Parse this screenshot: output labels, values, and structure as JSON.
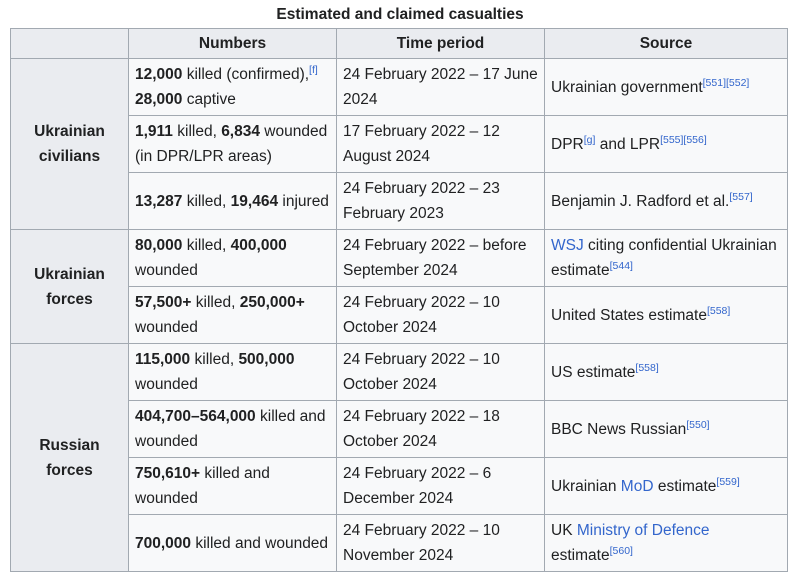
{
  "caption": "Estimated and claimed casualties",
  "headers": {
    "numbers": "Numbers",
    "time_period": "Time period",
    "source": "Source"
  },
  "groups": {
    "civilians": "Ukrainian civilians",
    "ua_forces": "Ukrainian forces",
    "ru_forces": "Russian forces"
  },
  "rows": [
    {
      "num_b1": "12,000",
      "num_t1": " killed (confirmed),",
      "num_ref": "[f]",
      "num_b2": "28,000",
      "num_t2": " captive",
      "time": "24 February 2022 – 17 June 2024",
      "src_pre": "Ukrainian government",
      "src_refs": "[551][552]"
    },
    {
      "num_b1": "1,911",
      "num_t1": " killed, ",
      "num_b2": "6,834",
      "num_t2": " wounded (in DPR/LPR areas)",
      "time": "17 February 2022 – 12 August 2024",
      "src_pre": "DPR",
      "src_ref1": "[g]",
      "src_mid": " and LPR",
      "src_refs": "[555][556]"
    },
    {
      "num_b1": "13,287",
      "num_t1": " killed, ",
      "num_b2": "19,464",
      "num_t2": " injured",
      "time": "24 February 2022 – 23 February 2023",
      "src_pre": "Benjamin J. Radford et al.",
      "src_refs": "[557]"
    },
    {
      "num_b1": "80,000",
      "num_t1": " killed, ",
      "num_b2": "400,000",
      "num_t2": " wounded",
      "time": "24 February 2022 – before September 2024",
      "src_link": "WSJ",
      "src_post": " citing confidential Ukrainian estimate",
      "src_refs": "[544]"
    },
    {
      "num_b1": "57,500+",
      "num_t1": " killed, ",
      "num_b2": "250,000+",
      "num_t2": " wounded",
      "time": "24 February 2022 – 10 October 2024",
      "src_pre": "United States estimate",
      "src_refs": "[558]"
    },
    {
      "num_b1": "115,000",
      "num_t1": " killed, ",
      "num_b2": "500,000",
      "num_t2": " wounded",
      "time": "24 February 2022 – 10 October 2024",
      "src_pre": "US estimate",
      "src_refs": "[558]"
    },
    {
      "num_b1": "404,700–564,000",
      "num_t1": " killed and wounded",
      "time": "24 February 2022 – 18 October 2024",
      "src_pre": "BBC News Russian",
      "src_refs": "[550]"
    },
    {
      "num_b1": "750,610+",
      "num_t1": " killed and wounded",
      "time": "24 February 2022 – 6 December 2024",
      "src_pre": "Ukrainian ",
      "src_link": "MoD",
      "src_post": " estimate",
      "src_refs": "[559]"
    },
    {
      "num_b1": "700,000",
      "num_t1": " killed and wounded",
      "time": "24 February 2022 – 10 November 2024",
      "src_pre": "UK ",
      "src_link": "Ministry of Defence",
      "src_post": " estimate",
      "src_refs": "[560]"
    }
  ]
}
